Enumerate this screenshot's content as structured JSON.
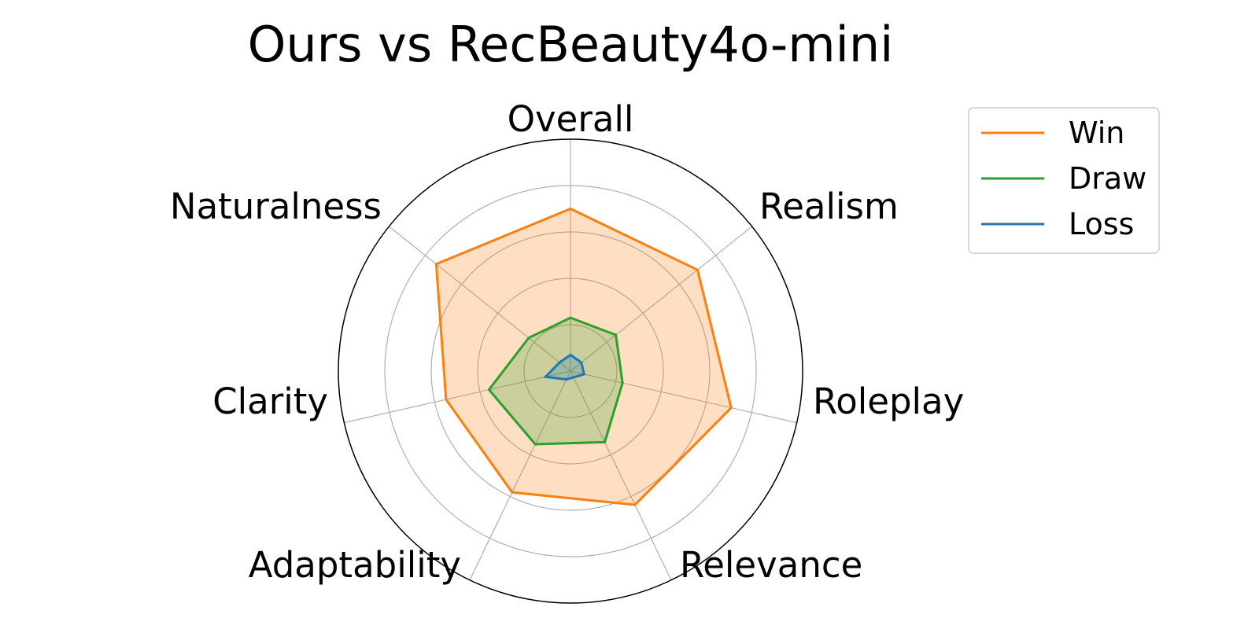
{
  "chart_data": {
    "type": "radar",
    "title": "Ours vs RecBeauty4o-mini",
    "categories": [
      "Overall",
      "Realism",
      "Roleplay",
      "Relevance",
      "Adaptability",
      "Clarity",
      "Naturalness"
    ],
    "series": [
      {
        "name": "Win",
        "color": "#ff7f0e",
        "values": [
          0.7,
          0.7,
          0.71,
          0.64,
          0.58,
          0.55,
          0.74
        ]
      },
      {
        "name": "Draw",
        "color": "#2ca02c",
        "values": [
          0.23,
          0.25,
          0.23,
          0.34,
          0.35,
          0.36,
          0.23
        ]
      },
      {
        "name": "Loss",
        "color": "#1f77b4",
        "values": [
          0.07,
          0.06,
          0.06,
          0.03,
          0.04,
          0.11,
          0.06
        ]
      }
    ],
    "rlim": [
      0,
      1
    ],
    "rgrid": [
      0.2,
      0.4,
      0.6,
      0.8
    ],
    "grid": true,
    "radial_tick_labels_shown": false,
    "legend": "top-right",
    "fill": true
  }
}
